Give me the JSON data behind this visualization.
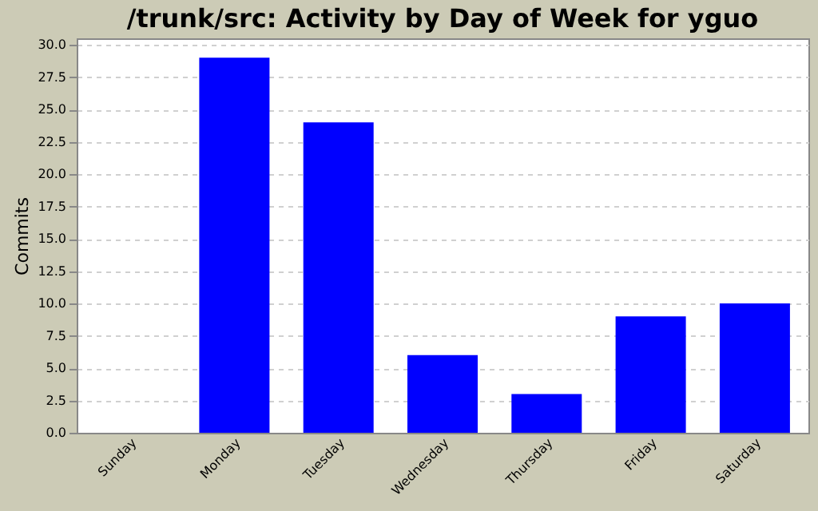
{
  "chart_data": {
    "type": "bar",
    "title": "/trunk/src: Activity by Day of Week for yguo",
    "ylabel": "Commits",
    "categories": [
      "Sunday",
      "Monday",
      "Tuesday",
      "Wednesday",
      "Thursday",
      "Friday",
      "Saturday"
    ],
    "values": [
      0,
      29,
      24,
      6,
      3,
      9,
      10
    ],
    "color": "#0000ff",
    "ylim": [
      0,
      30.5
    ],
    "yticks": [
      {
        "value": 0,
        "label": "0.0"
      },
      {
        "value": 2.5,
        "label": "2.5"
      },
      {
        "value": 5,
        "label": "5.0"
      },
      {
        "value": 7.5,
        "label": "7.5"
      },
      {
        "value": 10,
        "label": "10.0"
      },
      {
        "value": 12.5,
        "label": "12.5"
      },
      {
        "value": 15,
        "label": "15.0"
      },
      {
        "value": 17.5,
        "label": "17.5"
      },
      {
        "value": 20,
        "label": "20.0"
      },
      {
        "value": 22.5,
        "label": "22.5"
      },
      {
        "value": 25,
        "label": "25.0"
      },
      {
        "value": 27.5,
        "label": "27.5"
      },
      {
        "value": 30,
        "label": "30.0"
      }
    ],
    "grid": "y"
  }
}
